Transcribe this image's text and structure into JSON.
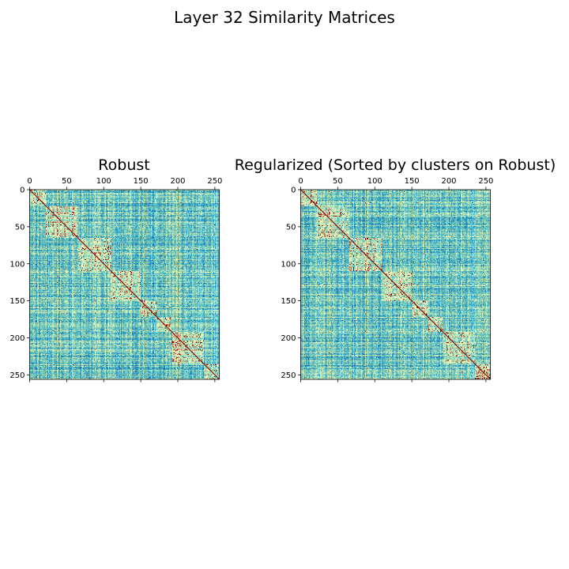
{
  "figure": {
    "title": "Layer 32 Similarity Matrices"
  },
  "chart_data": [
    {
      "type": "heatmap",
      "title": "Robust",
      "size": 256,
      "xlim": [
        0,
        256
      ],
      "ylim": [
        256,
        0
      ],
      "xticks": [
        0,
        50,
        100,
        150,
        200,
        250
      ],
      "yticks": [
        0,
        50,
        100,
        150,
        200,
        250
      ],
      "x_tick_position": "top",
      "colormap": [
        "#ffffd9",
        "#edf8b1",
        "#c7e9b4",
        "#7fcdbb",
        "#41b6c4",
        "#1d91c0",
        "#225ea8"
      ],
      "diagonal_color": "#8b0000",
      "cluster_blocks": [
        [
          0,
          22
        ],
        [
          22,
          65
        ],
        [
          65,
          110
        ],
        [
          110,
          150
        ],
        [
          150,
          172
        ],
        [
          172,
          192
        ],
        [
          192,
          235
        ],
        [
          235,
          256
        ]
      ],
      "grid": false,
      "legend": "none"
    },
    {
      "type": "heatmap",
      "title": "Regularized (Sorted by clusters on Robust)",
      "size": 256,
      "xlim": [
        0,
        256
      ],
      "ylim": [
        256,
        0
      ],
      "xticks": [
        0,
        50,
        100,
        150,
        200,
        250
      ],
      "yticks": [
        0,
        50,
        100,
        150,
        200,
        250
      ],
      "x_tick_position": "top",
      "colormap": [
        "#ffffd9",
        "#edf8b1",
        "#c7e9b4",
        "#7fcdbb",
        "#41b6c4",
        "#1d91c0",
        "#225ea8"
      ],
      "diagonal_color": "#8b0000",
      "cluster_blocks": [
        [
          0,
          22
        ],
        [
          22,
          65
        ],
        [
          65,
          110
        ],
        [
          110,
          150
        ],
        [
          150,
          172
        ],
        [
          172,
          192
        ],
        [
          192,
          235
        ],
        [
          235,
          256
        ]
      ],
      "grid": false,
      "legend": "none"
    }
  ]
}
